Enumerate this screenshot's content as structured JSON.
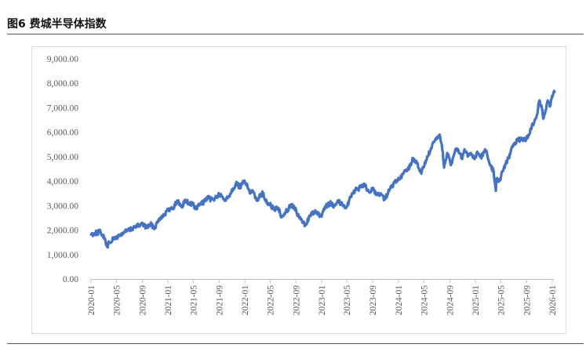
{
  "figure": {
    "title": "图6  费城半导体指数"
  },
  "chart_data": {
    "type": "line",
    "title": "费城半导体指数",
    "xlabel": "",
    "ylabel": "",
    "ylim": [
      0,
      9000
    ],
    "yticks": [
      "0.00",
      "1,000.00",
      "2,000.00",
      "3,000.00",
      "4,000.00",
      "5,000.00",
      "6,000.00",
      "7,000.00",
      "8,000.00",
      "9,000.00"
    ],
    "xticks": [
      "2020-01",
      "2020-05",
      "2020-09",
      "2021-01",
      "2021-05",
      "2021-09",
      "2022-01",
      "2022-05",
      "2022-09",
      "2023-01",
      "2023-05",
      "2023-09",
      "2024-01",
      "2024-05",
      "2024-09",
      "2025-01",
      "2025-05",
      "2025-09",
      "2026-01"
    ],
    "grid": false,
    "color": "#4472C4",
    "series": [
      {
        "name": "费城半导体指数",
        "points": [
          [
            "2020-01-01",
            1820
          ],
          [
            "2020-01-20",
            1880
          ],
          [
            "2020-02-15",
            1930
          ],
          [
            "2020-02-25",
            1800
          ],
          [
            "2020-03-10",
            1550
          ],
          [
            "2020-03-18",
            1300
          ],
          [
            "2020-03-28",
            1500
          ],
          [
            "2020-04-15",
            1620
          ],
          [
            "2020-05-01",
            1700
          ],
          [
            "2020-05-20",
            1800
          ],
          [
            "2020-06-10",
            1930
          ],
          [
            "2020-07-01",
            2000
          ],
          [
            "2020-07-20",
            2100
          ],
          [
            "2020-08-15",
            2180
          ],
          [
            "2020-09-01",
            2260
          ],
          [
            "2020-09-20",
            2100
          ],
          [
            "2020-10-10",
            2230
          ],
          [
            "2020-10-30",
            2100
          ],
          [
            "2020-11-20",
            2470
          ],
          [
            "2020-12-15",
            2650
          ],
          [
            "2021-01-01",
            2800
          ],
          [
            "2021-01-25",
            2900
          ],
          [
            "2021-02-15",
            3200
          ],
          [
            "2021-03-05",
            2950
          ],
          [
            "2021-03-25",
            3200
          ],
          [
            "2021-04-10",
            3100
          ],
          [
            "2021-04-30",
            3050
          ],
          [
            "2021-05-12",
            2850
          ],
          [
            "2021-06-01",
            3050
          ],
          [
            "2021-06-20",
            3150
          ],
          [
            "2021-07-10",
            3300
          ],
          [
            "2021-07-30",
            3250
          ],
          [
            "2021-08-20",
            3350
          ],
          [
            "2021-09-01",
            3450
          ],
          [
            "2021-09-25",
            3250
          ],
          [
            "2021-10-10",
            3300
          ],
          [
            "2021-10-30",
            3600
          ],
          [
            "2021-11-20",
            3900
          ],
          [
            "2021-12-10",
            3750
          ],
          [
            "2021-12-28",
            3980
          ],
          [
            "2022-01-10",
            3900
          ],
          [
            "2022-01-25",
            3500
          ],
          [
            "2022-02-10",
            3550
          ],
          [
            "2022-02-28",
            3250
          ],
          [
            "2022-03-15",
            3400
          ],
          [
            "2022-03-28",
            3500
          ],
          [
            "2022-04-15",
            3100
          ],
          [
            "2022-05-05",
            3000
          ],
          [
            "2022-05-20",
            2850
          ],
          [
            "2022-06-10",
            2900
          ],
          [
            "2022-06-25",
            2550
          ],
          [
            "2022-07-15",
            2750
          ],
          [
            "2022-08-10",
            3050
          ],
          [
            "2022-08-25",
            2900
          ],
          [
            "2022-09-10",
            2600
          ],
          [
            "2022-09-30",
            2350
          ],
          [
            "2022-10-15",
            2200
          ],
          [
            "2022-11-01",
            2500
          ],
          [
            "2022-11-25",
            2750
          ],
          [
            "2022-12-15",
            2650
          ],
          [
            "2023-01-01",
            2550
          ],
          [
            "2023-01-20",
            2950
          ],
          [
            "2023-02-10",
            3100
          ],
          [
            "2023-03-01",
            3000
          ],
          [
            "2023-03-20",
            3200
          ],
          [
            "2023-04-15",
            3000
          ],
          [
            "2023-05-01",
            2950
          ],
          [
            "2023-05-25",
            3500
          ],
          [
            "2023-06-15",
            3650
          ],
          [
            "2023-07-10",
            3750
          ],
          [
            "2023-07-25",
            3850
          ],
          [
            "2023-08-15",
            3550
          ],
          [
            "2023-09-01",
            3650
          ],
          [
            "2023-09-25",
            3450
          ],
          [
            "2023-10-10",
            3500
          ],
          [
            "2023-10-28",
            3250
          ],
          [
            "2023-11-20",
            3650
          ],
          [
            "2023-12-15",
            3950
          ],
          [
            "2024-01-10",
            4100
          ],
          [
            "2024-02-01",
            4400
          ],
          [
            "2024-02-25",
            4600
          ],
          [
            "2024-03-10",
            4900
          ],
          [
            "2024-03-30",
            4750
          ],
          [
            "2024-04-19",
            4300
          ],
          [
            "2024-05-10",
            4850
          ],
          [
            "2024-05-30",
            5200
          ],
          [
            "2024-06-18",
            5600
          ],
          [
            "2024-07-05",
            5750
          ],
          [
            "2024-07-15",
            5900
          ],
          [
            "2024-07-30",
            5200
          ],
          [
            "2024-08-05",
            4550
          ],
          [
            "2024-08-20",
            5150
          ],
          [
            "2024-09-06",
            4650
          ],
          [
            "2024-09-25",
            5200
          ],
          [
            "2024-10-10",
            5300
          ],
          [
            "2024-10-30",
            4900
          ],
          [
            "2024-11-10",
            5300
          ],
          [
            "2024-11-25",
            5000
          ],
          [
            "2024-12-10",
            5150
          ],
          [
            "2024-12-28",
            4900
          ],
          [
            "2025-01-10",
            5200
          ],
          [
            "2025-01-27",
            4950
          ],
          [
            "2025-02-15",
            5300
          ],
          [
            "2025-02-28",
            5000
          ],
          [
            "2025-03-15",
            4650
          ],
          [
            "2025-03-28",
            4400
          ],
          [
            "2025-04-04",
            3900
          ],
          [
            "2025-04-08",
            3600
          ],
          [
            "2025-04-10",
            4100
          ],
          [
            "2025-04-25",
            4000
          ],
          [
            "2025-05-10",
            4400
          ],
          [
            "2025-05-25",
            4700
          ],
          [
            "2025-06-15",
            5100
          ],
          [
            "2025-06-30",
            5500
          ],
          [
            "2025-07-20",
            5650
          ],
          [
            "2025-08-10",
            5750
          ],
          [
            "2025-08-25",
            5650
          ],
          [
            "2025-09-10",
            5900
          ],
          [
            "2025-09-30",
            6300
          ],
          [
            "2025-10-10",
            6500
          ],
          [
            "2025-10-20",
            6700
          ],
          [
            "2025-10-30",
            7250
          ],
          [
            "2025-11-10",
            7100
          ],
          [
            "2025-11-20",
            6550
          ],
          [
            "2025-12-01",
            6900
          ],
          [
            "2025-12-10",
            7300
          ],
          [
            "2025-12-20",
            7050
          ],
          [
            "2026-01-02",
            7450
          ],
          [
            "2026-01-12",
            7650
          ]
        ]
      }
    ]
  }
}
